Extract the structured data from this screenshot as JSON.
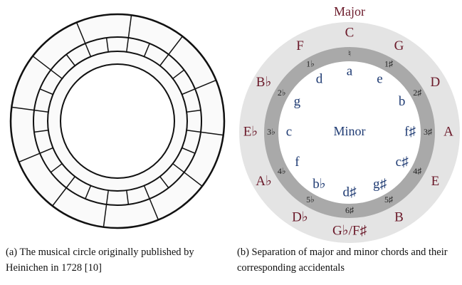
{
  "figure_a": {
    "caption": "(a) The musical circle originally published by Heinichen in 1728 [10]"
  },
  "figure_b": {
    "outer_label": "Major",
    "center_label": "Minor",
    "major": [
      "C",
      "G",
      "D",
      "A",
      "E",
      "B",
      "G♭/F♯",
      "D♭",
      "A♭",
      "E♭",
      "B♭",
      "F"
    ],
    "accidentals": [
      "♮",
      "1♯",
      "2♯",
      "3♯",
      "4♯",
      "5♯",
      "6♯",
      "5♭",
      "4♭",
      "3♭",
      "2♭",
      "1♭"
    ],
    "minor": [
      "a",
      "e",
      "b",
      "f♯",
      "c♯",
      "g♯",
      "d♯",
      "b♭",
      "f",
      "c",
      "g",
      "d"
    ],
    "caption": "(b) Separation of major and minor chords and their corresponding accidentals"
  }
}
